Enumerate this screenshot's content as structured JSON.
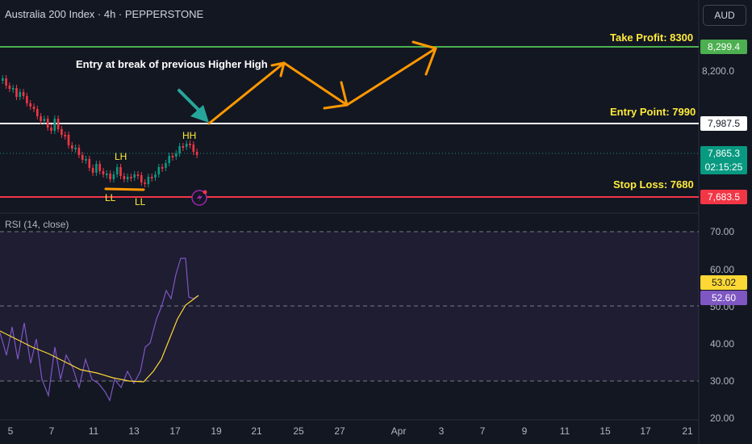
{
  "header": {
    "title": "Australia 200 Index · 4h · PEPPERSTONE",
    "currency_button": "AUD"
  },
  "price_badges": {
    "take_profit": "8,299.4",
    "entry": "7,987.5",
    "current": "7,865.3",
    "countdown": "02:15:25",
    "stop_loss": "7,683.5"
  },
  "price_axis": {
    "label_8200": "8,200.0"
  },
  "annotations": {
    "take_profit": "Take Profit: 8300",
    "entry_point": "Entry Point: 7990",
    "stop_loss": "Stop Loss: 7680",
    "entry_note": "Entry at break of previous Higher High",
    "hh": "HH",
    "lh": "LH",
    "ll1": "LL",
    "ll2": "LL"
  },
  "rsi": {
    "label": "RSI (14, close)",
    "axis": [
      "70.00",
      "60.00",
      "50.00",
      "40.00",
      "30.00",
      "20.00"
    ],
    "badge_ma": "53.02",
    "badge_rsi": "52.60"
  },
  "time_axis": [
    "5",
    "7",
    "11",
    "13",
    "17",
    "19",
    "21",
    "25",
    "27",
    "Apr",
    "3",
    "7",
    "9",
    "11",
    "15",
    "17",
    "21"
  ],
  "colors": {
    "background": "#131722",
    "take_profit": "#4caf50",
    "stop_loss": "#f23645",
    "entry_line": "#ffffff",
    "current_price": "#089981",
    "bull": "#089981",
    "bear": "#f23645",
    "rsi_line": "#7e57c2",
    "rsi_ma": "#fdd835",
    "arrow": "#ff9800",
    "teal_arrow": "#26a69a",
    "annotation_text": "#ffeb3b"
  }
}
